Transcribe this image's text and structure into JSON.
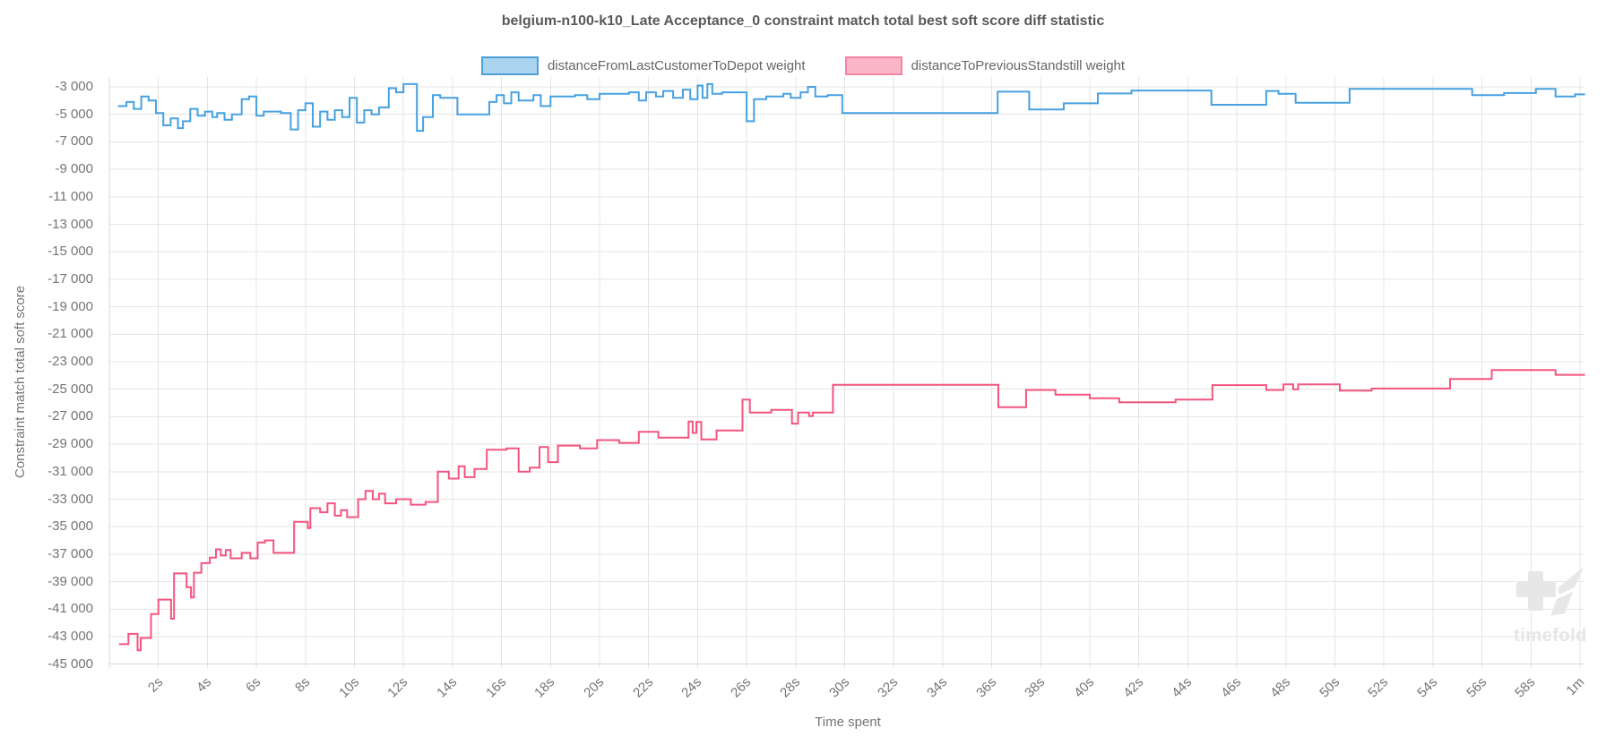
{
  "title": "belgium-n100-k10_Late Acceptance_0 constraint match total best soft score diff statistic",
  "watermark": {
    "text": "timefold",
    "color": "#e7e7e7"
  },
  "legend": [
    {
      "label": "distanceFromLastCustomerToDepot weight",
      "fill": "#abd4f1",
      "border": "#4e9ed8"
    },
    {
      "label": "distanceToPreviousStandstill weight",
      "fill": "#fbb6c8",
      "border": "#f585a3"
    }
  ],
  "chart_data": {
    "type": "line",
    "step": true,
    "title": "belgium-n100-k10_Late Acceptance_0 constraint match total best soft score diff statistic",
    "xlabel": "Time spent",
    "ylabel": "Constraint match total soft score",
    "grid": true,
    "legend_position": "top",
    "ylim": [
      -45000,
      -3000
    ],
    "xlim_seconds": [
      0,
      60.2
    ],
    "colors": {
      "grid": "#e4e4e4",
      "axis": "#d8d8d8",
      "tick_text": "#757575",
      "title_text": "#595959"
    },
    "y_ticks": [
      {
        "v": -3000,
        "label": "-3 000"
      },
      {
        "v": -5000,
        "label": "-5 000"
      },
      {
        "v": -7000,
        "label": "-7 000"
      },
      {
        "v": -9000,
        "label": "-9 000"
      },
      {
        "v": -11000,
        "label": "-11 000"
      },
      {
        "v": -13000,
        "label": "-13 000"
      },
      {
        "v": -15000,
        "label": "-15 000"
      },
      {
        "v": -17000,
        "label": "-17 000"
      },
      {
        "v": -19000,
        "label": "-19 000"
      },
      {
        "v": -21000,
        "label": "-21 000"
      },
      {
        "v": -23000,
        "label": "-23 000"
      },
      {
        "v": -25000,
        "label": "-25 000"
      },
      {
        "v": -27000,
        "label": "-27 000"
      },
      {
        "v": -29000,
        "label": "-29 000"
      },
      {
        "v": -31000,
        "label": "-31 000"
      },
      {
        "v": -33000,
        "label": "-33 000"
      },
      {
        "v": -35000,
        "label": "-35 000"
      },
      {
        "v": -37000,
        "label": "-37 000"
      },
      {
        "v": -39000,
        "label": "-39 000"
      },
      {
        "v": -41000,
        "label": "-41 000"
      },
      {
        "v": -43000,
        "label": "-43 000"
      },
      {
        "v": -45000,
        "label": "-45 000"
      }
    ],
    "x_ticks": [
      {
        "t": 2,
        "label": "2s"
      },
      {
        "t": 4,
        "label": "4s"
      },
      {
        "t": 6,
        "label": "6s"
      },
      {
        "t": 8,
        "label": "8s"
      },
      {
        "t": 10,
        "label": "10s"
      },
      {
        "t": 12,
        "label": "12s"
      },
      {
        "t": 14,
        "label": "14s"
      },
      {
        "t": 16,
        "label": "16s"
      },
      {
        "t": 18,
        "label": "18s"
      },
      {
        "t": 20,
        "label": "20s"
      },
      {
        "t": 22,
        "label": "22s"
      },
      {
        "t": 24,
        "label": "24s"
      },
      {
        "t": 26,
        "label": "26s"
      },
      {
        "t": 28,
        "label": "28s"
      },
      {
        "t": 30,
        "label": "30s"
      },
      {
        "t": 32,
        "label": "32s"
      },
      {
        "t": 34,
        "label": "34s"
      },
      {
        "t": 36,
        "label": "36s"
      },
      {
        "t": 38,
        "label": "38s"
      },
      {
        "t": 40,
        "label": "40s"
      },
      {
        "t": 42,
        "label": "42s"
      },
      {
        "t": 44,
        "label": "44s"
      },
      {
        "t": 46,
        "label": "46s"
      },
      {
        "t": 48,
        "label": "48s"
      },
      {
        "t": 50,
        "label": "50s"
      },
      {
        "t": 52,
        "label": "52s"
      },
      {
        "t": 54,
        "label": "54s"
      },
      {
        "t": 56,
        "label": "56s"
      },
      {
        "t": 58,
        "label": "58s"
      },
      {
        "t": 60,
        "label": "1m"
      }
    ],
    "series": [
      {
        "name": "distanceFromLastCustomerToDepot weight",
        "color": "#47a1e0",
        "points": [
          [
            0.35,
            -4400
          ],
          [
            0.7,
            -4100
          ],
          [
            1.0,
            -4600
          ],
          [
            1.3,
            -3700
          ],
          [
            1.6,
            -4000
          ],
          [
            1.9,
            -4900
          ],
          [
            2.2,
            -5800
          ],
          [
            2.5,
            -5300
          ],
          [
            2.8,
            -6000
          ],
          [
            3.0,
            -5500
          ],
          [
            3.3,
            -4600
          ],
          [
            3.6,
            -5100
          ],
          [
            3.9,
            -4800
          ],
          [
            4.2,
            -5200
          ],
          [
            4.4,
            -4900
          ],
          [
            4.7,
            -5400
          ],
          [
            5.0,
            -5000
          ],
          [
            5.4,
            -3900
          ],
          [
            5.7,
            -3700
          ],
          [
            6.0,
            -5100
          ],
          [
            6.3,
            -4800
          ],
          [
            7.0,
            -4900
          ],
          [
            7.4,
            -6100
          ],
          [
            7.7,
            -4700
          ],
          [
            8.0,
            -4200
          ],
          [
            8.3,
            -5900
          ],
          [
            8.6,
            -4800
          ],
          [
            8.9,
            -5400
          ],
          [
            9.2,
            -4700
          ],
          [
            9.5,
            -5200
          ],
          [
            9.8,
            -3800
          ],
          [
            10.1,
            -5600
          ],
          [
            10.4,
            -4700
          ],
          [
            10.7,
            -5000
          ],
          [
            11.0,
            -4500
          ],
          [
            11.4,
            -3100
          ],
          [
            11.7,
            -3400
          ],
          [
            12.0,
            -2800
          ],
          [
            12.55,
            -6200
          ],
          [
            12.8,
            -5200
          ],
          [
            13.2,
            -3600
          ],
          [
            13.5,
            -3800
          ],
          [
            14.2,
            -5000
          ],
          [
            15.5,
            -4100
          ],
          [
            15.8,
            -3600
          ],
          [
            16.1,
            -4200
          ],
          [
            16.4,
            -3400
          ],
          [
            16.7,
            -4000
          ],
          [
            17.3,
            -3600
          ],
          [
            17.6,
            -4400
          ],
          [
            18.0,
            -3700
          ],
          [
            19.0,
            -3600
          ],
          [
            19.5,
            -3900
          ],
          [
            20.0,
            -3500
          ],
          [
            21.2,
            -3400
          ],
          [
            21.6,
            -4000
          ],
          [
            21.9,
            -3400
          ],
          [
            22.3,
            -3700
          ],
          [
            22.6,
            -3300
          ],
          [
            23.0,
            -3800
          ],
          [
            23.4,
            -3200
          ],
          [
            23.7,
            -3900
          ],
          [
            24.0,
            -2900
          ],
          [
            24.2,
            -3800
          ],
          [
            24.4,
            -2800
          ],
          [
            24.6,
            -3500
          ],
          [
            25.0,
            -3400
          ],
          [
            26.0,
            -5500
          ],
          [
            26.3,
            -3900
          ],
          [
            26.8,
            -3700
          ],
          [
            27.5,
            -3500
          ],
          [
            27.8,
            -3800
          ],
          [
            28.2,
            -3400
          ],
          [
            28.5,
            -3000
          ],
          [
            28.8,
            -3700
          ],
          [
            29.3,
            -3600
          ],
          [
            29.9,
            -4900
          ],
          [
            36.24,
            -3350
          ],
          [
            37.53,
            -4650
          ],
          [
            38.94,
            -4200
          ],
          [
            40.33,
            -3480
          ],
          [
            41.7,
            -3270
          ],
          [
            44.96,
            -4300
          ],
          [
            47.2,
            -3300
          ],
          [
            47.7,
            -3500
          ],
          [
            48.4,
            -4150
          ],
          [
            50.6,
            -3150
          ],
          [
            55.6,
            -3600
          ],
          [
            56.9,
            -3450
          ],
          [
            58.2,
            -3150
          ],
          [
            59.0,
            -3700
          ],
          [
            59.8,
            -3550
          ]
        ]
      },
      {
        "name": "distanceToPreviousStandstill weight",
        "color": "#f4557f",
        "points": [
          [
            0.4,
            -43550
          ],
          [
            0.78,
            -42800
          ],
          [
            1.15,
            -44000
          ],
          [
            1.28,
            -43100
          ],
          [
            1.7,
            -41350
          ],
          [
            2.0,
            -40300
          ],
          [
            2.52,
            -41700
          ],
          [
            2.64,
            -38400
          ],
          [
            3.15,
            -39400
          ],
          [
            3.33,
            -40150
          ],
          [
            3.45,
            -38350
          ],
          [
            3.75,
            -37650
          ],
          [
            4.1,
            -37250
          ],
          [
            4.35,
            -36650
          ],
          [
            4.55,
            -37100
          ],
          [
            4.75,
            -36700
          ],
          [
            4.95,
            -37300
          ],
          [
            5.4,
            -36900
          ],
          [
            5.75,
            -37300
          ],
          [
            6.05,
            -36150
          ],
          [
            6.35,
            -36000
          ],
          [
            6.7,
            -36900
          ],
          [
            7.54,
            -34650
          ],
          [
            8.1,
            -35100
          ],
          [
            8.2,
            -33650
          ],
          [
            8.6,
            -33950
          ],
          [
            8.9,
            -33300
          ],
          [
            9.2,
            -34200
          ],
          [
            9.45,
            -33800
          ],
          [
            9.7,
            -34300
          ],
          [
            10.15,
            -33000
          ],
          [
            10.45,
            -32400
          ],
          [
            10.75,
            -33000
          ],
          [
            11.0,
            -32600
          ],
          [
            11.25,
            -33300
          ],
          [
            11.7,
            -33000
          ],
          [
            12.3,
            -33400
          ],
          [
            12.9,
            -33200
          ],
          [
            13.4,
            -31000
          ],
          [
            13.85,
            -31500
          ],
          [
            14.25,
            -30600
          ],
          [
            14.5,
            -31400
          ],
          [
            14.9,
            -30800
          ],
          [
            15.4,
            -29400
          ],
          [
            16.2,
            -29300
          ],
          [
            16.7,
            -31000
          ],
          [
            17.15,
            -30700
          ],
          [
            17.55,
            -29200
          ],
          [
            17.9,
            -30300
          ],
          [
            18.3,
            -29100
          ],
          [
            19.2,
            -29300
          ],
          [
            19.9,
            -28700
          ],
          [
            20.8,
            -28900
          ],
          [
            21.6,
            -28100
          ],
          [
            22.4,
            -28520
          ],
          [
            23.63,
            -27350
          ],
          [
            23.8,
            -28180
          ],
          [
            23.95,
            -27380
          ],
          [
            24.15,
            -28650
          ],
          [
            24.77,
            -28000
          ],
          [
            25.83,
            -25750
          ],
          [
            26.13,
            -26700
          ],
          [
            27.0,
            -26500
          ],
          [
            27.85,
            -27500
          ],
          [
            28.1,
            -26700
          ],
          [
            28.55,
            -26950
          ],
          [
            28.7,
            -26700
          ],
          [
            29.52,
            -24680
          ],
          [
            36.27,
            -26300
          ],
          [
            37.4,
            -25050
          ],
          [
            38.6,
            -25400
          ],
          [
            40.0,
            -25650
          ],
          [
            41.2,
            -25950
          ],
          [
            43.5,
            -25750
          ],
          [
            45.0,
            -24700
          ],
          [
            47.2,
            -25050
          ],
          [
            47.9,
            -24650
          ],
          [
            48.3,
            -25000
          ],
          [
            48.5,
            -24650
          ],
          [
            50.2,
            -25100
          ],
          [
            51.5,
            -24950
          ],
          [
            54.7,
            -24250
          ],
          [
            56.4,
            -23600
          ],
          [
            59.0,
            -23950
          ]
        ]
      }
    ]
  }
}
